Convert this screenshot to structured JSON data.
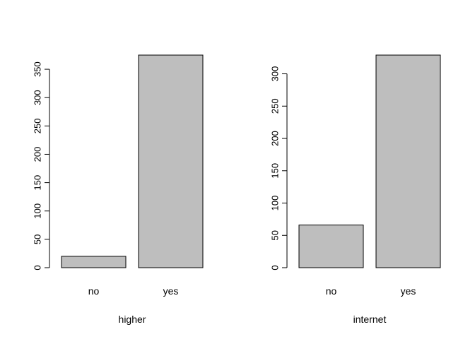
{
  "chart_data": [
    {
      "type": "bar",
      "xlabel": "higher",
      "ylabel": "",
      "title": "",
      "categories": [
        "no",
        "yes"
      ],
      "values": [
        20,
        375
      ],
      "ylim": [
        0,
        375
      ],
      "yticks": [
        0,
        50,
        100,
        150,
        200,
        250,
        300,
        350
      ],
      "ytick_labels": [
        "0",
        "50",
        "100",
        "150",
        "200",
        "250",
        "300",
        "350"
      ],
      "grid": false,
      "legend": "none",
      "bar_color": "#bebebe",
      "bar_edge": "#000000"
    },
    {
      "type": "bar",
      "xlabel": "internet",
      "ylabel": "",
      "title": "",
      "categories": [
        "no",
        "yes"
      ],
      "values": [
        66,
        329
      ],
      "ylim": [
        0,
        329
      ],
      "yticks": [
        0,
        50,
        100,
        150,
        200,
        250,
        300
      ],
      "ytick_labels": [
        "0",
        "50",
        "100",
        "150",
        "200",
        "250",
        "300"
      ],
      "grid": false,
      "legend": "none",
      "bar_color": "#bebebe",
      "bar_edge": "#000000"
    }
  ]
}
